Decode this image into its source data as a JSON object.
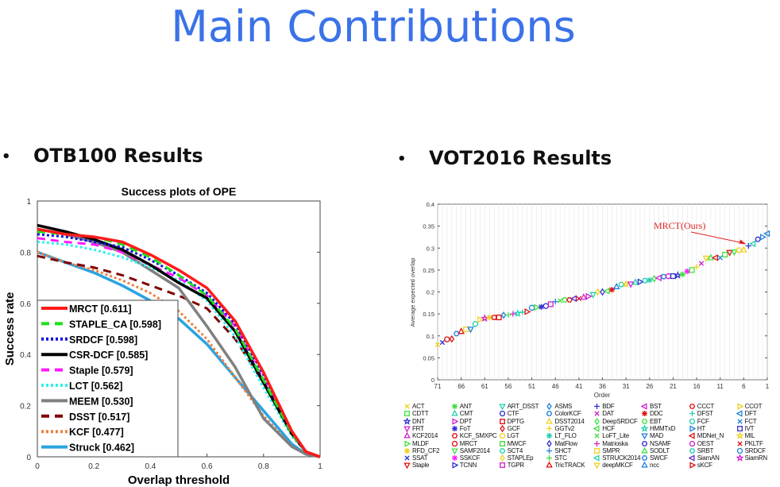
{
  "slide": {
    "title": "Main Contributions",
    "bullet_symbol": "•",
    "left_heading": "OTB100 Results",
    "right_heading": "VOT2016 Results"
  },
  "chart_data": [
    {
      "type": "line",
      "title": "Success plots of OPE",
      "xlabel": "Overlap threshold",
      "ylabel": "Success rate",
      "xlim": [
        0,
        1
      ],
      "ylim": [
        0,
        1
      ],
      "xticks": [
        "0",
        "0.2",
        "0.4",
        "0.6",
        "0.8",
        "1"
      ],
      "yticks": [
        "0",
        "0.2",
        "0.4",
        "0.6",
        "0.8",
        "1"
      ],
      "legend_position": "bottom-left",
      "x": [
        0,
        0.1,
        0.2,
        0.3,
        0.4,
        0.5,
        0.6,
        0.7,
        0.8,
        0.9,
        0.95,
        1
      ],
      "series": [
        {
          "name": "MRCT [0.611]",
          "color": "#ff1a1a",
          "style": "solid",
          "values": [
            0.89,
            0.87,
            0.86,
            0.84,
            0.79,
            0.73,
            0.66,
            0.53,
            0.33,
            0.1,
            0.02,
            0
          ]
        },
        {
          "name": "STAPLE_CA [0.598]",
          "color": "#1de01d",
          "style": "dashed",
          "values": [
            0.88,
            0.87,
            0.86,
            0.83,
            0.78,
            0.71,
            0.63,
            0.5,
            0.3,
            0.09,
            0.02,
            0
          ]
        },
        {
          "name": "SRDCF [0.598]",
          "color": "#1010e0",
          "style": "dotted",
          "values": [
            0.87,
            0.86,
            0.84,
            0.82,
            0.77,
            0.71,
            0.64,
            0.52,
            0.32,
            0.1,
            0.02,
            0
          ]
        },
        {
          "name": "CSR-DCF [0.585]",
          "color": "#000000",
          "style": "solid",
          "values": [
            0.905,
            0.88,
            0.85,
            0.81,
            0.75,
            0.68,
            0.62,
            0.49,
            0.29,
            0.09,
            0.02,
            0
          ]
        },
        {
          "name": "Staple [0.579]",
          "color": "#ff1aff",
          "style": "dashed",
          "values": [
            0.855,
            0.84,
            0.83,
            0.8,
            0.75,
            0.7,
            0.63,
            0.51,
            0.3,
            0.09,
            0.02,
            0
          ]
        },
        {
          "name": "LCT [0.562]",
          "color": "#30f0f0",
          "style": "dotted",
          "values": [
            0.84,
            0.83,
            0.81,
            0.78,
            0.74,
            0.69,
            0.61,
            0.47,
            0.27,
            0.08,
            0.02,
            0
          ]
        },
        {
          "name": "MEEM [0.530]",
          "color": "#808080",
          "style": "solid",
          "values": [
            0.89,
            0.87,
            0.84,
            0.8,
            0.73,
            0.66,
            0.51,
            0.35,
            0.15,
            0.04,
            0.01,
            0
          ]
        },
        {
          "name": "DSST [0.517]",
          "color": "#800000",
          "style": "dashed",
          "values": [
            0.785,
            0.76,
            0.74,
            0.71,
            0.67,
            0.63,
            0.58,
            0.46,
            0.29,
            0.1,
            0.02,
            0
          ]
        },
        {
          "name": "KCF [0.477]",
          "color": "#f08040",
          "style": "dotted",
          "values": [
            0.8,
            0.76,
            0.73,
            0.69,
            0.64,
            0.57,
            0.46,
            0.31,
            0.16,
            0.04,
            0.01,
            0
          ]
        },
        {
          "name": "Struck [0.462]",
          "color": "#2aa3e0",
          "style": "solid",
          "values": [
            0.8,
            0.76,
            0.72,
            0.67,
            0.61,
            0.54,
            0.44,
            0.31,
            0.18,
            0.05,
            0.01,
            0
          ]
        }
      ]
    },
    {
      "type": "scatter",
      "xlabel": "Order",
      "ylabel": "Average expected overlap",
      "xlim": [
        71,
        1
      ],
      "ylim": [
        0,
        0.4
      ],
      "xticks": [
        "71",
        "66",
        "61",
        "56",
        "51",
        "46",
        "41",
        "36",
        "31",
        "26",
        "21",
        "16",
        "11",
        "6",
        "1"
      ],
      "yticks": [
        "0",
        "0.05",
        "0.1",
        "0.15",
        "0.2",
        "0.25",
        "0.3",
        "0.35",
        "0.4"
      ],
      "annotation": {
        "text": "MRCT(Ours)",
        "order": 5,
        "value": 0.305
      },
      "order_from_71_to_1": [
        0.08,
        0.085,
        0.092,
        0.093,
        0.105,
        0.11,
        0.115,
        0.115,
        0.127,
        0.137,
        0.14,
        0.142,
        0.142,
        0.142,
        0.147,
        0.148,
        0.15,
        0.151,
        0.154,
        0.155,
        0.164,
        0.165,
        0.166,
        0.168,
        0.172,
        0.178,
        0.18,
        0.182,
        0.182,
        0.185,
        0.185,
        0.188,
        0.19,
        0.194,
        0.2,
        0.2,
        0.202,
        0.205,
        0.212,
        0.217,
        0.218,
        0.218,
        0.222,
        0.223,
        0.226,
        0.227,
        0.23,
        0.232,
        0.235,
        0.236,
        0.236,
        0.238,
        0.24,
        0.247,
        0.25,
        0.257,
        0.265,
        0.277,
        0.278,
        0.278,
        0.278,
        0.285,
        0.29,
        0.291,
        0.295,
        0.296,
        0.305,
        0.31,
        0.32,
        0.325,
        0.333
      ],
      "legend": [
        {
          "name": "ACT",
          "color": "#f0d020",
          "glyph": "×"
        },
        {
          "name": "CDTT",
          "color": "#40e040",
          "glyph": "□"
        },
        {
          "name": "DNT",
          "color": "#3030d0",
          "glyph": "☆"
        },
        {
          "name": "FRT",
          "color": "#d020d0",
          "glyph": "▽"
        },
        {
          "name": "KCF2014",
          "color": "#d020d0",
          "glyph": "△"
        },
        {
          "name": "MLDF",
          "color": "#40e040",
          "glyph": "▷"
        },
        {
          "name": "RFD_CF2",
          "color": "#f0d020",
          "glyph": "✱"
        },
        {
          "name": "SSAT",
          "color": "#3030d0",
          "glyph": "×"
        },
        {
          "name": "Staple",
          "color": "#e01010",
          "glyph": "▽"
        },
        {
          "name": "ANT",
          "color": "#40e040",
          "glyph": "✱"
        },
        {
          "name": "CMT",
          "color": "#20d0b0",
          "glyph": "△"
        },
        {
          "name": "DPT",
          "color": "#d020d0",
          "glyph": "▷"
        },
        {
          "name": "FoT",
          "color": "#3030d0",
          "glyph": "✱"
        },
        {
          "name": "KCF_SMXPC",
          "color": "#e01010",
          "glyph": "✿"
        },
        {
          "name": "MRCT",
          "color": "#e01010",
          "glyph": "○"
        },
        {
          "name": "SAMF2014",
          "color": "#40e040",
          "glyph": "▽"
        },
        {
          "name": "SSKCF",
          "color": "#ff20ff",
          "glyph": "✱"
        },
        {
          "name": "TCNN",
          "color": "#3030d0",
          "glyph": "▷"
        },
        {
          "name": "ART_DSST",
          "color": "#20d0b0",
          "glyph": "▽"
        },
        {
          "name": "CTF",
          "color": "#3030d0",
          "glyph": "○"
        },
        {
          "name": "DPTG",
          "color": "#e01010",
          "glyph": "□"
        },
        {
          "name": "GCF",
          "color": "#e01010",
          "glyph": "◇"
        },
        {
          "name": "LGT",
          "color": "#f0d020",
          "glyph": "○"
        },
        {
          "name": "MWCF",
          "color": "#40e040",
          "glyph": "□"
        },
        {
          "name": "SCT4",
          "color": "#20d0b0",
          "glyph": "⬡"
        },
        {
          "name": "STAPLEp",
          "color": "#f0d020",
          "glyph": "◇"
        },
        {
          "name": "TGPR",
          "color": "#d020d0",
          "glyph": "□"
        },
        {
          "name": "ASMS",
          "color": "#2080e0",
          "glyph": "◇"
        },
        {
          "name": "ColorKCF",
          "color": "#2080e0",
          "glyph": "✿"
        },
        {
          "name": "DSST2014",
          "color": "#f0d020",
          "glyph": "△"
        },
        {
          "name": "GGTv2",
          "color": "#f0d020",
          "glyph": "+"
        },
        {
          "name": "LT_FLO",
          "color": "#20d0b0",
          "glyph": "✱"
        },
        {
          "name": "MatFlow",
          "color": "#3030d0",
          "glyph": "◇"
        },
        {
          "name": "SHCT",
          "color": "#2080e0",
          "glyph": "+"
        },
        {
          "name": "STC",
          "color": "#40e040",
          "glyph": "+"
        },
        {
          "name": "TricTRACK",
          "color": "#e01010",
          "glyph": "△"
        },
        {
          "name": "BDF",
          "color": "#3030d0",
          "glyph": "+"
        },
        {
          "name": "DAT",
          "color": "#d020d0",
          "glyph": "×"
        },
        {
          "name": "DeepSRDCF",
          "color": "#40e040",
          "glyph": "◇"
        },
        {
          "name": "HCF",
          "color": "#40e040",
          "glyph": "◁"
        },
        {
          "name": "LoFT_Lite",
          "color": "#40e040",
          "glyph": "×"
        },
        {
          "name": "Matrioska",
          "color": "#d020d0",
          "glyph": "+"
        },
        {
          "name": "SMPR",
          "color": "#f0d020",
          "glyph": "□"
        },
        {
          "name": "STRUCK2014",
          "color": "#20d0b0",
          "glyph": "◁"
        },
        {
          "name": "deepMKCF",
          "color": "#f0d020",
          "glyph": "▽"
        },
        {
          "name": "BST",
          "color": "#d020d0",
          "glyph": "◁"
        },
        {
          "name": "DDC",
          "color": "#e01010",
          "glyph": "✱"
        },
        {
          "name": "EBT",
          "color": "#40e040",
          "glyph": "✿"
        },
        {
          "name": "HMMTxD",
          "color": "#20d0b0",
          "glyph": "☆"
        },
        {
          "name": "MAD",
          "color": "#2080e0",
          "glyph": "▽"
        },
        {
          "name": "NSAMF",
          "color": "#3030d0",
          "glyph": "✿"
        },
        {
          "name": "SODLT",
          "color": "#40e040",
          "glyph": "△"
        },
        {
          "name": "SWCF",
          "color": "#2080e0",
          "glyph": "✿"
        },
        {
          "name": "ncc",
          "color": "#2080e0",
          "glyph": "△"
        },
        {
          "name": "CCCT",
          "color": "#e01010",
          "glyph": "✿"
        },
        {
          "name": "DFST",
          "color": "#20d0b0",
          "glyph": "+"
        },
        {
          "name": "FCF",
          "color": "#20d0b0",
          "glyph": "○"
        },
        {
          "name": "HT",
          "color": "#2080e0",
          "glyph": "▷"
        },
        {
          "name": "MDNet_N",
          "color": "#e01010",
          "glyph": "◁"
        },
        {
          "name": "OEST",
          "color": "#d020d0",
          "glyph": "○"
        },
        {
          "name": "SRBT",
          "color": "#20d0b0",
          "glyph": "✿"
        },
        {
          "name": "SiamAN",
          "color": "#6030d0",
          "glyph": "◁"
        },
        {
          "name": "sKCF",
          "color": "#e01010",
          "glyph": "▷"
        },
        {
          "name": "CCOT",
          "color": "#f0d020",
          "glyph": "▷"
        },
        {
          "name": "DFT",
          "color": "#2080e0",
          "glyph": "◁"
        },
        {
          "name": "FCT",
          "color": "#2080e0",
          "glyph": "×"
        },
        {
          "name": "IVT",
          "color": "#3030d0",
          "glyph": "□"
        },
        {
          "name": "MIL",
          "color": "#f0d020",
          "glyph": "☆"
        },
        {
          "name": "PKLTF",
          "color": "#e01010",
          "glyph": "×"
        },
        {
          "name": "SRDCF",
          "color": "#2080e0",
          "glyph": "○"
        },
        {
          "name": "SiamRN",
          "color": "#d020d0",
          "glyph": "☆"
        }
      ]
    }
  ]
}
